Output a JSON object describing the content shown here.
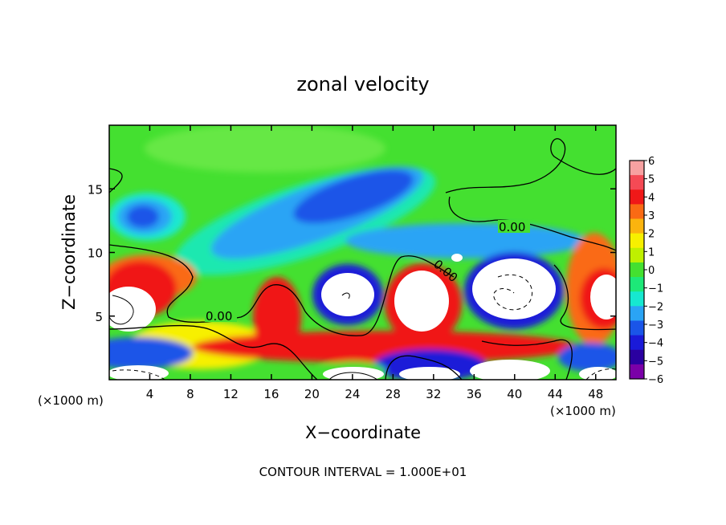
{
  "chart_data": {
    "type": "heatmap",
    "title": "zonal velocity",
    "xlabel": "X−coordinate",
    "ylabel": "Z−coordinate",
    "x_unit_left": "(×1000 m)",
    "x_unit_right": "(×1000 m)",
    "xlim": [
      0,
      50
    ],
    "ylim": [
      0,
      20
    ],
    "xticks": [
      4,
      8,
      12,
      16,
      20,
      24,
      28,
      32,
      36,
      40,
      44,
      48
    ],
    "yticks": [
      5,
      10,
      15
    ],
    "footer": "CONTOUR INTERVAL = 1.000E+01",
    "colorbar": {
      "ticks": [
        6,
        5,
        4,
        3,
        2,
        1,
        0,
        -1,
        -2,
        -3,
        -4,
        -5,
        -6
      ],
      "colors": [
        "#f7a1a1",
        "#f54a55",
        "#f01818",
        "#fa6a14",
        "#fbb40e",
        "#f7f000",
        "#bff000",
        "#44e030",
        "#1de878",
        "#16e8d0",
        "#2aa4f5",
        "#1a55e8",
        "#1a1ad8",
        "#2a00a0",
        "#7a00a8"
      ]
    },
    "contour_labels": [
      {
        "text": "0.00",
        "x": 10.7,
        "z": 5.0
      },
      {
        "text": "0.00",
        "x": 31.3,
        "z": 8.0
      },
      {
        "text": "0.00",
        "x": 39.5,
        "z": 11.8
      }
    ],
    "features": [
      {
        "label": "jet core",
        "x": 24,
        "z": 14,
        "u": -4
      },
      {
        "label": "upper-left eddy",
        "x": 4.5,
        "z": 12.5,
        "u": -4
      },
      {
        "label": "vortex",
        "x": 24,
        "z": 6.5,
        "u": -6
      },
      {
        "label": "vortex",
        "x": 31,
        "z": 6.5,
        "u": 6
      },
      {
        "label": "vortex",
        "x": 39,
        "z": 6.5,
        "u": -6
      },
      {
        "label": "vortex",
        "x": 47,
        "z": 6.5,
        "u": 6
      },
      {
        "label": "vortex",
        "x": 1,
        "z": 6,
        "u": 6
      },
      {
        "label": "surface cell",
        "x": 33,
        "z": 0.6,
        "u": -6
      },
      {
        "label": "surface cell",
        "x": 40,
        "z": 0.6,
        "u": 6
      }
    ]
  }
}
